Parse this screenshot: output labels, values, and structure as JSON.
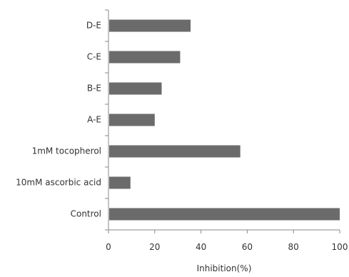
{
  "chart_data": {
    "type": "bar",
    "orientation": "horizontal",
    "categories": [
      "D-E",
      "C-E",
      "B-E",
      "A-E",
      "1mM tocopherol",
      "10mM ascorbic acid",
      "Control"
    ],
    "values": [
      35.5,
      31,
      23,
      20,
      57,
      9.5,
      100
    ],
    "xlabel": "Inhibition(%)",
    "ylabel": "",
    "xlim": [
      0,
      100
    ],
    "xticks": [
      0,
      20,
      40,
      60,
      80,
      100
    ],
    "bar_color": "#6b6b6b",
    "grid": false,
    "legend": false
  }
}
